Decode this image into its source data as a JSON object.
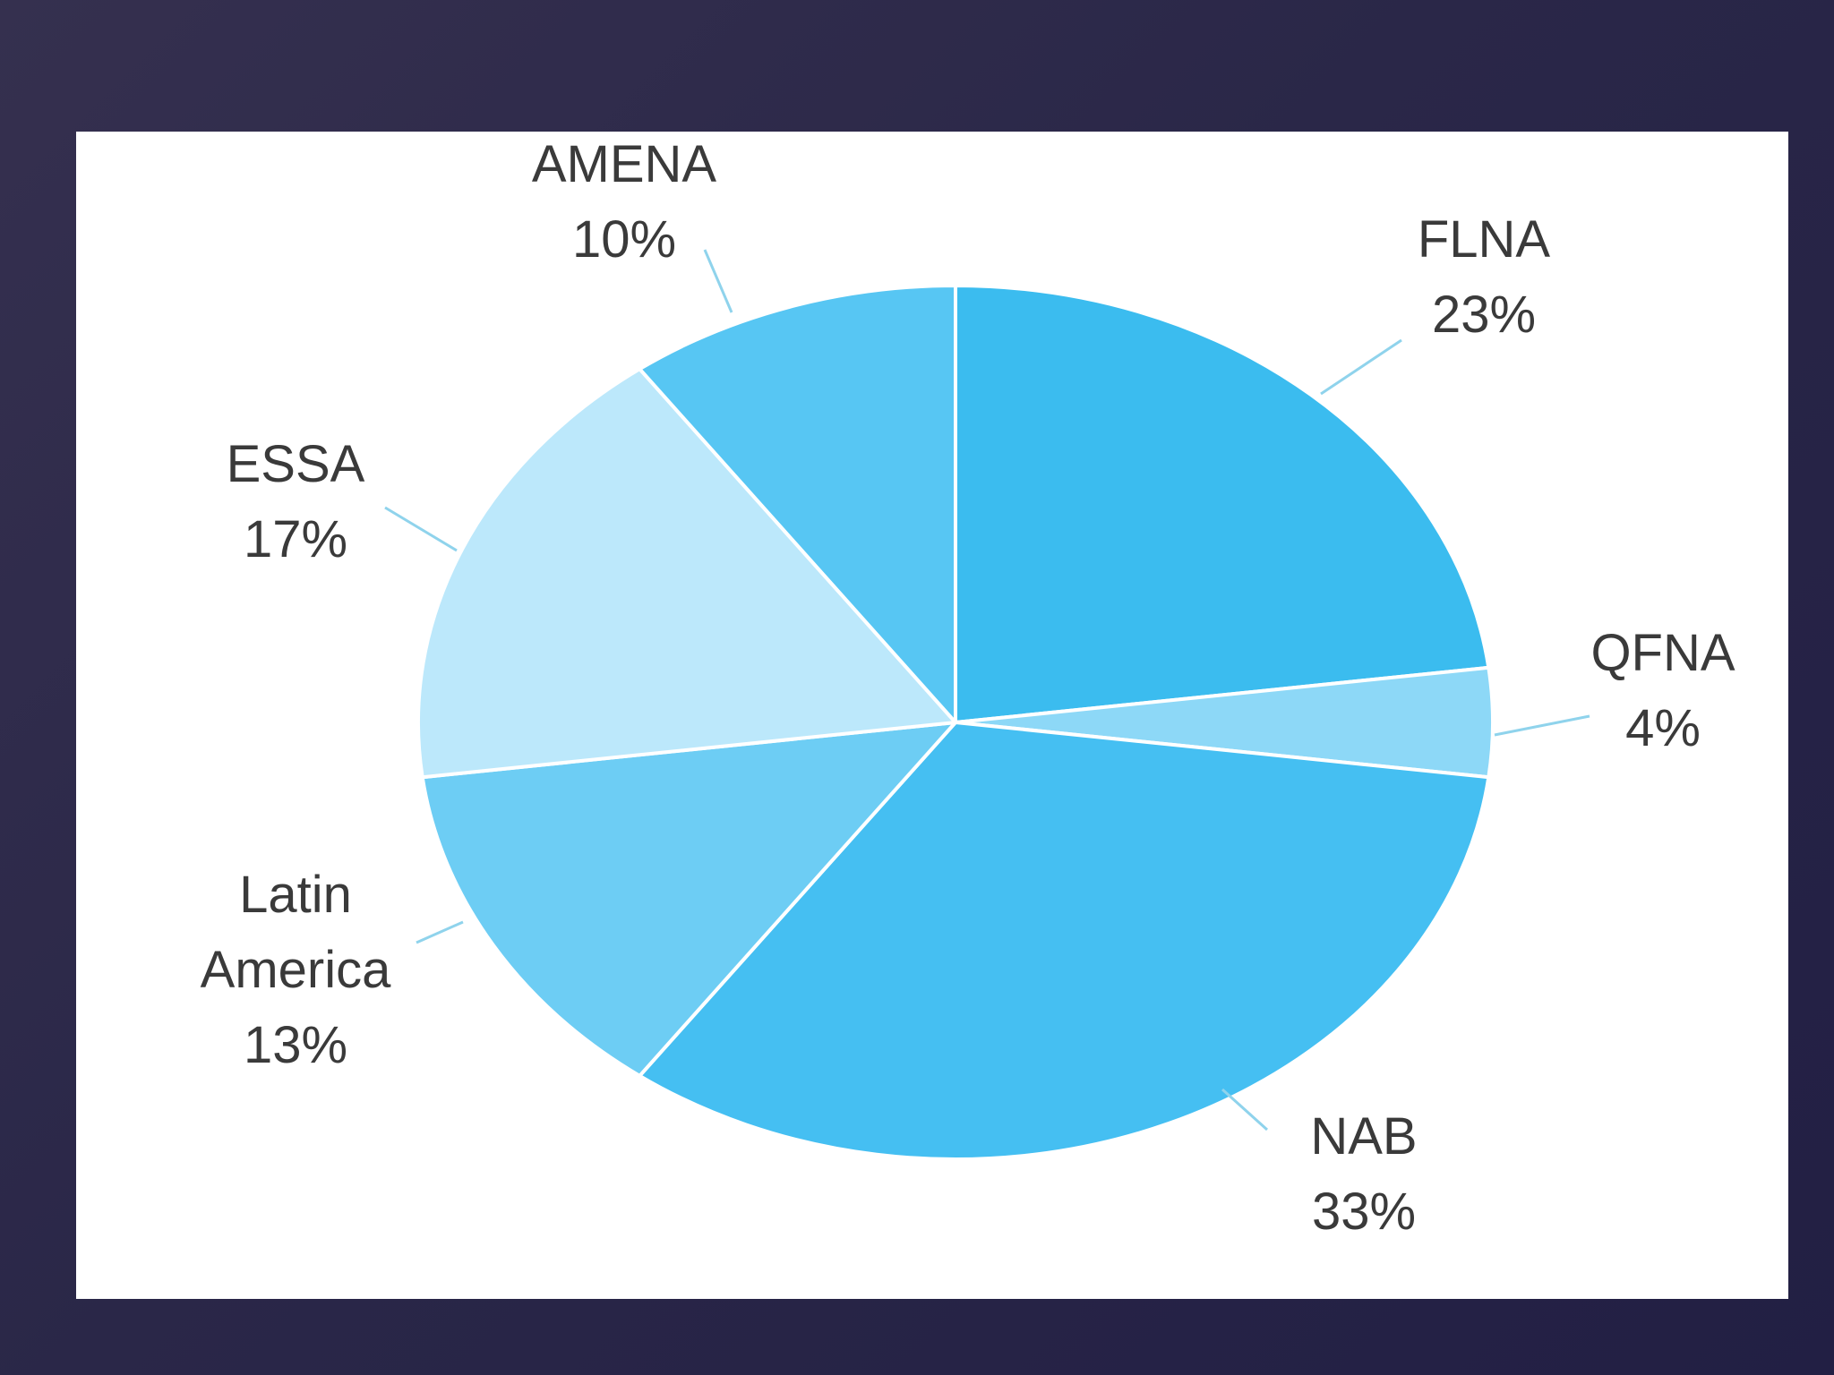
{
  "chart_data": {
    "type": "pie",
    "slices": [
      {
        "label_lines": [
          "FLNA"
        ],
        "value_text": "23%",
        "value": 23,
        "color": "#3bbcef"
      },
      {
        "label_lines": [
          "QFNA"
        ],
        "value_text": "4%",
        "value": 4,
        "color": "#8dd8f7"
      },
      {
        "label_lines": [
          "NAB"
        ],
        "value_text": "33%",
        "value": 33,
        "color": "#45bff2"
      },
      {
        "label_lines": [
          "Latin",
          "America"
        ],
        "value_text": "13%",
        "value": 13,
        "color": "#6dcdf4"
      },
      {
        "label_lines": [
          "ESSA"
        ],
        "value_text": "17%",
        "value": 17,
        "color": "#bce8fb"
      },
      {
        "label_lines": [
          "AMENA"
        ],
        "value_text": "10%",
        "value": 10,
        "color": "#57c6f3"
      }
    ],
    "leader_line_color": "#8fd3ec",
    "label_color": "#3a3a3a",
    "background": "#ffffff"
  }
}
